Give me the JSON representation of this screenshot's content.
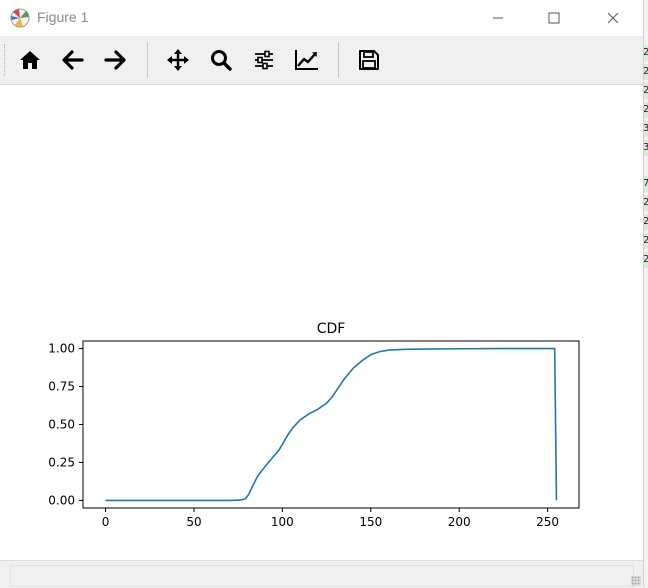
{
  "window": {
    "title": "Figure 1"
  },
  "window_controls": {
    "minimize": "—",
    "maximize": "☐",
    "close": "✕"
  },
  "toolbar": {
    "buttons": [
      {
        "name": "home",
        "icon": "home-icon"
      },
      {
        "name": "back",
        "icon": "arrow-left-icon"
      },
      {
        "name": "forward",
        "icon": "arrow-right-icon"
      },
      {
        "name": "pan",
        "icon": "move-icon"
      },
      {
        "name": "zoom",
        "icon": "magnifier-icon"
      },
      {
        "name": "configure-subplots",
        "icon": "sliders-icon"
      },
      {
        "name": "edit-axis",
        "icon": "line-chart-icon"
      },
      {
        "name": "save",
        "icon": "floppy-disk-icon"
      }
    ]
  },
  "background_cells": [
    "2",
    "2",
    "2",
    "2",
    "3",
    "3",
    "7",
    "2",
    "2",
    "2",
    "2"
  ],
  "chart_data": {
    "type": "line",
    "title": "CDF",
    "xlabel": "",
    "ylabel": "",
    "xlim": [
      -12.75,
      267.75
    ],
    "ylim": [
      -0.05,
      1.05
    ],
    "xticks": [
      0,
      50,
      100,
      150,
      200,
      250
    ],
    "xtick_labels": [
      "0",
      "50",
      "100",
      "150",
      "200",
      "250"
    ],
    "yticks": [
      0,
      0.25,
      0.5,
      0.75,
      1.0
    ],
    "ytick_labels": [
      "0.00",
      "0.25",
      "0.50",
      "0.75",
      "1.00"
    ],
    "grid": false,
    "line_color": "#1f77b4",
    "series": [
      {
        "x": [
          0,
          70,
          76,
          79,
          81,
          83,
          86,
          90,
          95,
          98,
          100,
          103,
          106,
          110,
          115,
          120,
          125,
          128,
          131,
          135,
          140,
          145,
          150,
          155,
          160,
          170,
          180,
          200,
          220,
          240,
          254,
          255
        ],
        "y": [
          0,
          0,
          0.002,
          0.01,
          0.04,
          0.09,
          0.16,
          0.22,
          0.29,
          0.33,
          0.37,
          0.43,
          0.48,
          0.53,
          0.57,
          0.6,
          0.64,
          0.68,
          0.73,
          0.8,
          0.87,
          0.92,
          0.96,
          0.98,
          0.99,
          0.995,
          0.997,
          0.999,
          1.0,
          1.0,
          1.0,
          0.0
        ]
      }
    ]
  }
}
